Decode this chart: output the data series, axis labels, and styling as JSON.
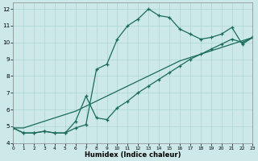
{
  "xlabel": "Humidex (Indice chaleur)",
  "x": [
    0,
    1,
    2,
    3,
    4,
    5,
    6,
    7,
    8,
    9,
    10,
    11,
    12,
    13,
    14,
    15,
    16,
    17,
    18,
    19,
    20,
    21,
    22,
    23
  ],
  "line1": [
    4.9,
    4.6,
    4.6,
    4.7,
    4.6,
    4.6,
    4.9,
    5.1,
    8.4,
    8.7,
    10.2,
    11.0,
    11.4,
    12.0,
    11.6,
    11.5,
    10.8,
    10.5,
    10.2,
    10.3,
    10.5,
    10.9,
    9.9,
    10.3
  ],
  "line2": [
    4.9,
    4.6,
    4.6,
    4.7,
    4.6,
    4.6,
    5.3,
    6.8,
    5.5,
    5.4,
    6.1,
    6.5,
    7.0,
    7.4,
    7.8,
    8.2,
    8.6,
    9.0,
    9.3,
    9.6,
    9.9,
    10.2,
    10.0,
    10.3
  ],
  "line3": [
    4.9,
    4.9,
    5.1,
    5.3,
    5.5,
    5.7,
    5.9,
    6.2,
    6.5,
    6.8,
    7.1,
    7.4,
    7.7,
    8.0,
    8.3,
    8.6,
    8.9,
    9.1,
    9.3,
    9.5,
    9.7,
    9.9,
    10.1,
    10.3
  ],
  "bg_color": "#cce8e8",
  "grid_color": "#aad4d4",
  "line_color": "#1a6b5a",
  "xlim": [
    0,
    23
  ],
  "ylim": [
    4,
    12.4
  ],
  "yticks": [
    4,
    5,
    6,
    7,
    8,
    9,
    10,
    11,
    12
  ],
  "xticks": [
    0,
    1,
    2,
    3,
    4,
    5,
    6,
    7,
    8,
    9,
    10,
    11,
    12,
    13,
    14,
    15,
    16,
    17,
    18,
    19,
    20,
    21,
    22,
    23
  ]
}
